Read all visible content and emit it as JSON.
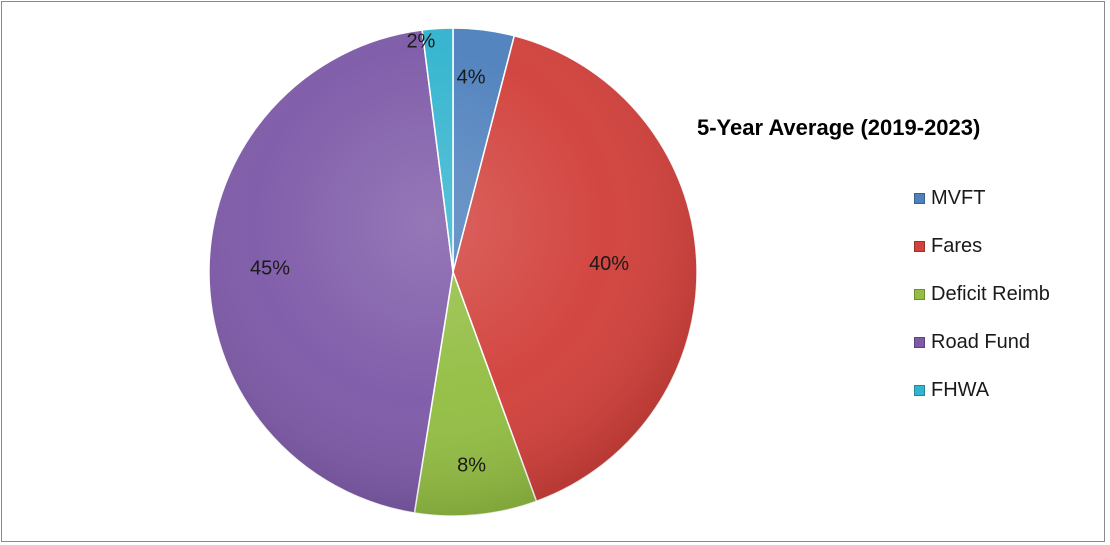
{
  "chart_data": {
    "type": "pie",
    "title": "5-Year Average (2019-2023)",
    "slices": [
      {
        "label": "MVFT",
        "value": 4,
        "value_label": "4%",
        "color": "#4F81BD"
      },
      {
        "label": "Fares",
        "value": 40,
        "value_label": "40%",
        "color": "#D2413C"
      },
      {
        "label": "Deficit Reimb",
        "value": 8,
        "value_label": "8%",
        "color": "#93BE43"
      },
      {
        "label": "Road Fund",
        "value": 45,
        "value_label": "45%",
        "color": "#7E5AA8"
      },
      {
        "label": "FHWA",
        "value": 2,
        "value_label": "2%",
        "color": "#32B4CE"
      }
    ],
    "legend_position": "right"
  }
}
